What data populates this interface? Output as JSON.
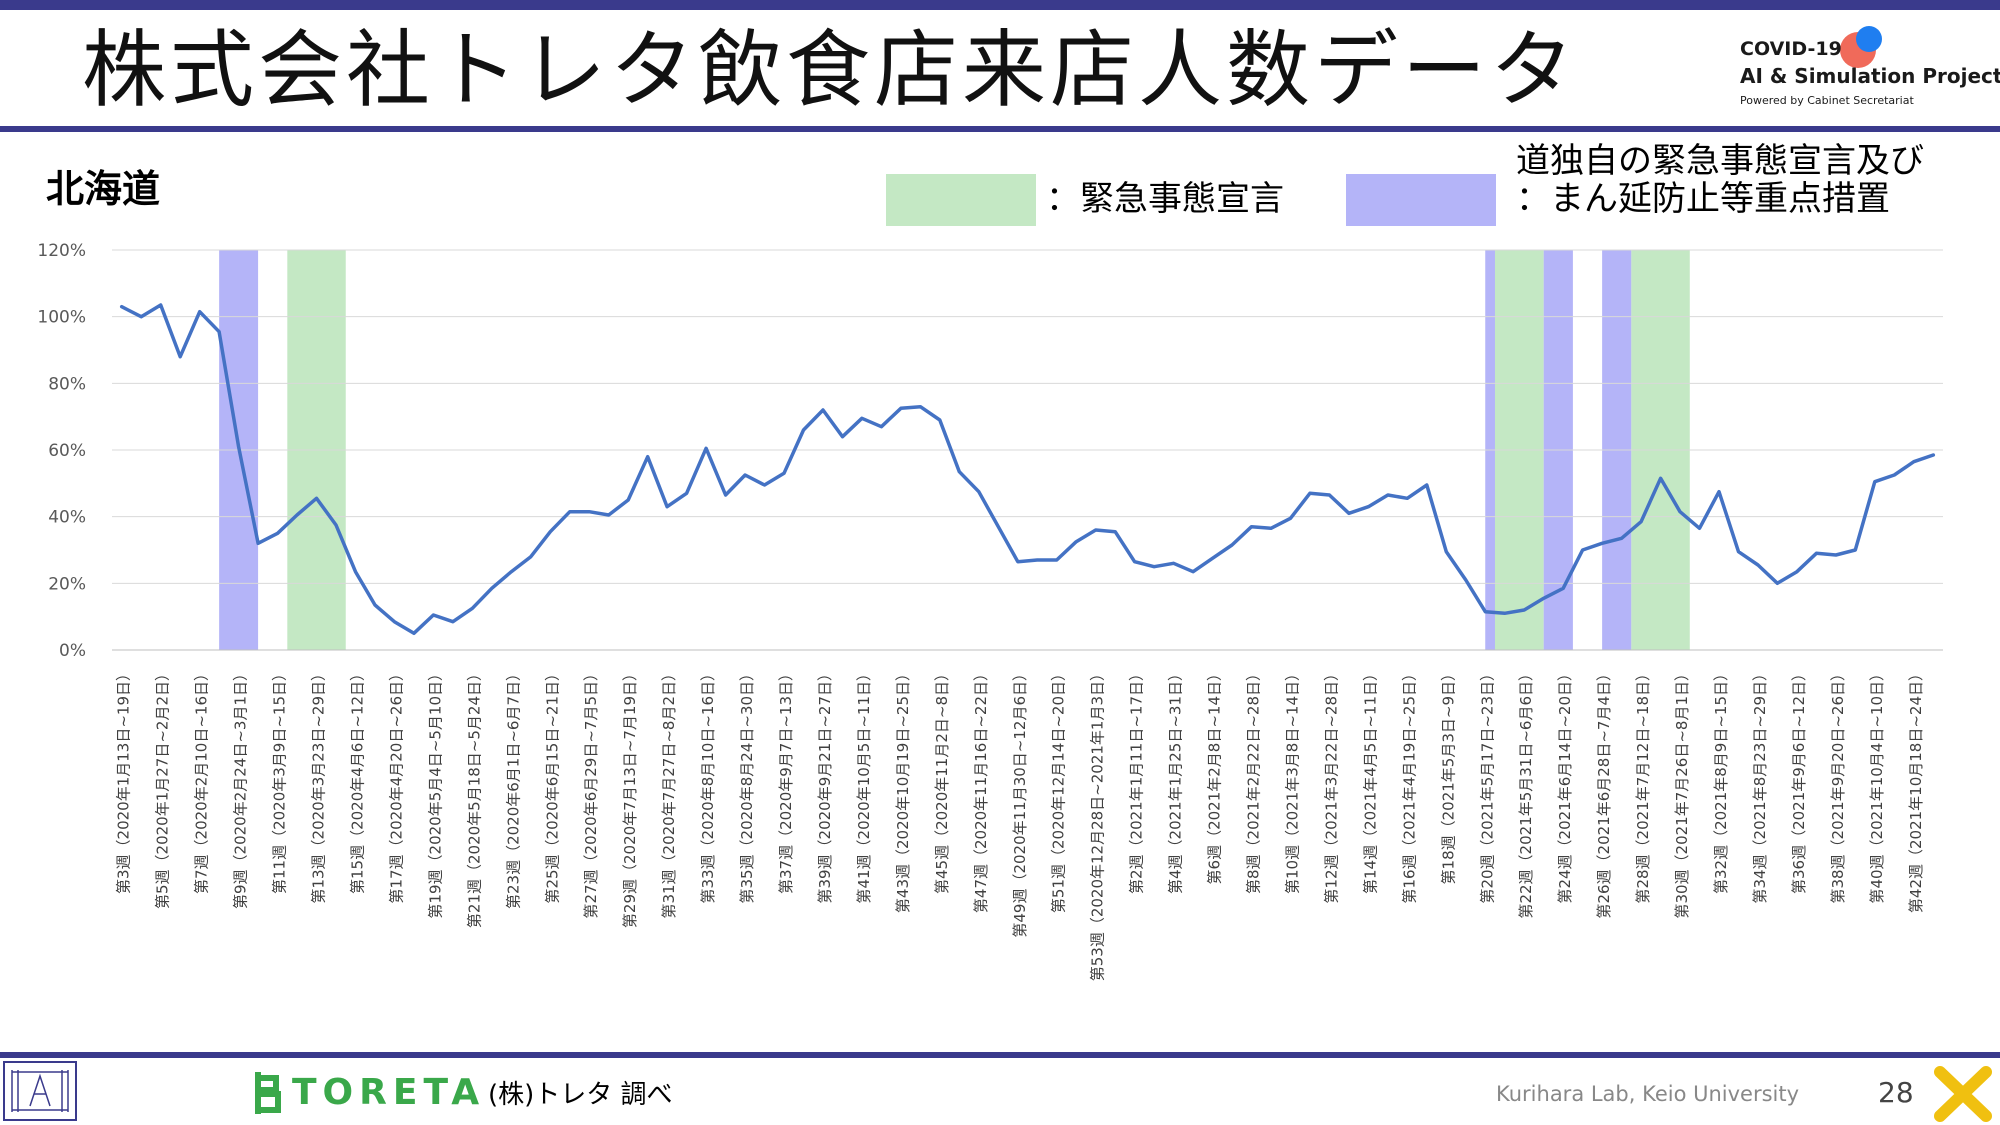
{
  "slide": {
    "title": "株式会社トレタ飲食店来店人数データ",
    "logo": {
      "line1": "COVID-19",
      "line2": "AI & Simulation Project",
      "line3": "Powered by Cabinet Secretariat"
    },
    "region": "北海道",
    "legend": [
      {
        "label": "：緊急事態宣言",
        "color": "#c4e8c4"
      },
      {
        "label_line1": "道独自の緊急事態宣言及び",
        "label_line2": "：まん延防止等重点措置",
        "color": "#b4b4f8"
      }
    ],
    "footer": {
      "company": "TORETA",
      "source": "(株)トレタ 調べ",
      "lab": "Kurihara Lab, Keio University",
      "page": "28"
    }
  },
  "chart_data": {
    "type": "line",
    "ylim": [
      0,
      120
    ],
    "yticks": [
      "0%",
      "20%",
      "40%",
      "60%",
      "80%",
      "100%",
      "120%"
    ],
    "grid": true,
    "line_color": "#4472c4",
    "x_labels": [
      "第3週（2020年1月13日~19日）",
      "第5週（2020年1月27日~2月2日）",
      "第7週（2020年2月10日~16日）",
      "第9週（2020年2月24日~3月1日）",
      "第11週（2020年3月9日~15日）",
      "第13週（2020年3月23日~29日）",
      "第15週（2020年4月6日~12日）",
      "第17週（2020年4月20日~26日）",
      "第19週（2020年5月4日~5月10日）",
      "第21週（2020年5月18日~5月24日）",
      "第23週（2020年6月1日~6月7日）",
      "第25週（2020年6月15日~21日）",
      "第27週（2020年6月29日~7月5日）",
      "第29週（2020年7月13日~7月19日）",
      "第31週（2020年7月27日~8月2日）",
      "第33週（2020年8月10日~16日）",
      "第35週（2020年8月24日~30日）",
      "第37週（2020年9月7日~13日）",
      "第39週（2020年9月21日~27日）",
      "第41週（2020年10月5日~11日）",
      "第43週（2020年10月19日~25日）",
      "第45週（2020年11月2日~8日）",
      "第47週（2020年11月16日~22日）",
      "第49週（2020年11月30日~12月6日）",
      "第51週（2020年12月14日~20日）",
      "第53週（2020年12月28日~2021年1月3日）",
      "第2週（2021年1月11日~17日）",
      "第4週（2021年1月25日~31日）",
      "第6週（2021年2月8日~14日）",
      "第8週（2021年2月22日~28日）",
      "第10週（2021年3月8日~14日）",
      "第12週（2021年3月22日~28日）",
      "第14週（2021年4月5日~11日）",
      "第16週（2021年4月19日~25日）",
      "第18週（2021年5月3日~9日）",
      "第20週（2021年5月17日~23日）",
      "第22週（2021年5月31日~6月6日）",
      "第24週（2021年6月14日~20日）",
      "第26週（2021年6月28日~7月4日）",
      "第28週（2021年7月12日~18日）",
      "第30週（2021年7月26日~8月1日）",
      "第32週（2021年8月9日~15日）",
      "第34週（2021年8月23日~29日）",
      "第36週（2021年9月6日~12日）",
      "第38週（2021年9月20日~26日）",
      "第40週（2021年10月4日~10日）",
      "第42週（2021年10月18日~24日）"
    ],
    "values": [
      103,
      100,
      103.5,
      88,
      101.5,
      95.5,
      61,
      32,
      35,
      40.5,
      45.5,
      37.5,
      23.5,
      13.5,
      8.5,
      5,
      10.5,
      8.5,
      12.5,
      18.5,
      23.5,
      28,
      35.5,
      41.5,
      41.5,
      40.5,
      45,
      58,
      43,
      47,
      60.5,
      46.5,
      52.5,
      49.5,
      53,
      66,
      72,
      64,
      69.5,
      67,
      72.5,
      73,
      69,
      53.5,
      47.5,
      37,
      26.5,
      27,
      27,
      32.5,
      36,
      35.5,
      26.5,
      25,
      26,
      23.5,
      27.5,
      31.5,
      37,
      36.5,
      39.5,
      47,
      46.5,
      41,
      43,
      46.5,
      45.5,
      49.5,
      29.5,
      21,
      11.5,
      11,
      12,
      15.5,
      18.5,
      30,
      32,
      33.5,
      38.5,
      51.5,
      41.5,
      36.5,
      47.5,
      29.5,
      25.5,
      20,
      23.5,
      29,
      28.5,
      30,
      50.5,
      52.5,
      56.5,
      58.5
    ],
    "shaded_ranges": [
      {
        "kind": "blue",
        "start": 5.5,
        "end": 7.5
      },
      {
        "kind": "green",
        "start": 9,
        "end": 12
      },
      {
        "kind": "blue",
        "start": 70.5,
        "end": 71
      },
      {
        "kind": "green",
        "start": 71,
        "end": 73.5
      },
      {
        "kind": "blue",
        "start": 73.5,
        "end": 75
      },
      {
        "kind": "blue",
        "start": 76.5,
        "end": 78
      },
      {
        "kind": "green",
        "start": 78,
        "end": 81
      }
    ]
  }
}
